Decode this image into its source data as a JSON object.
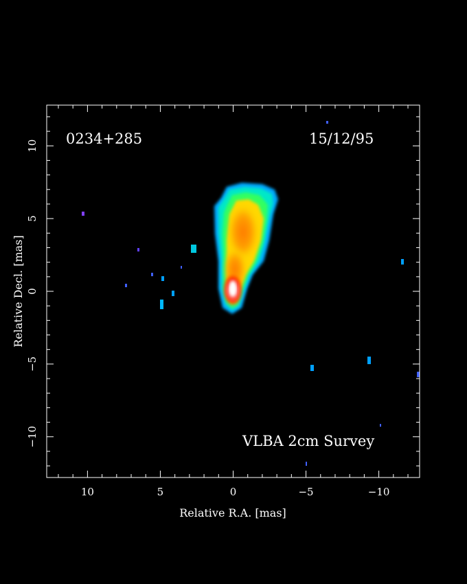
{
  "source_name": "0234+285",
  "epoch": "15/12/95",
  "survey": "VLBA 2cm Survey",
  "xlabel": "Relative R.A. [mas]",
  "ylabel": "Relative Decl. [mas]",
  "x_range": [
    12.8,
    -12.8
  ],
  "y_range": [
    -12.8,
    12.8
  ],
  "x_ticks": [
    10,
    5,
    0,
    -5,
    -10
  ],
  "x_tick_labels": [
    "10",
    "5",
    "0",
    "−5",
    "−10"
  ],
  "y_ticks": [
    10,
    5,
    0,
    -5,
    -10
  ],
  "y_tick_labels": [
    "10",
    "5",
    "0",
    "−5",
    "−10"
  ],
  "colors": {
    "background": "#000000",
    "frame": "#ffffff",
    "map_low": "#0040ff",
    "map_mid": "#00ff80",
    "map_high": "#ff3000",
    "map_peak": "#ffffff"
  }
}
